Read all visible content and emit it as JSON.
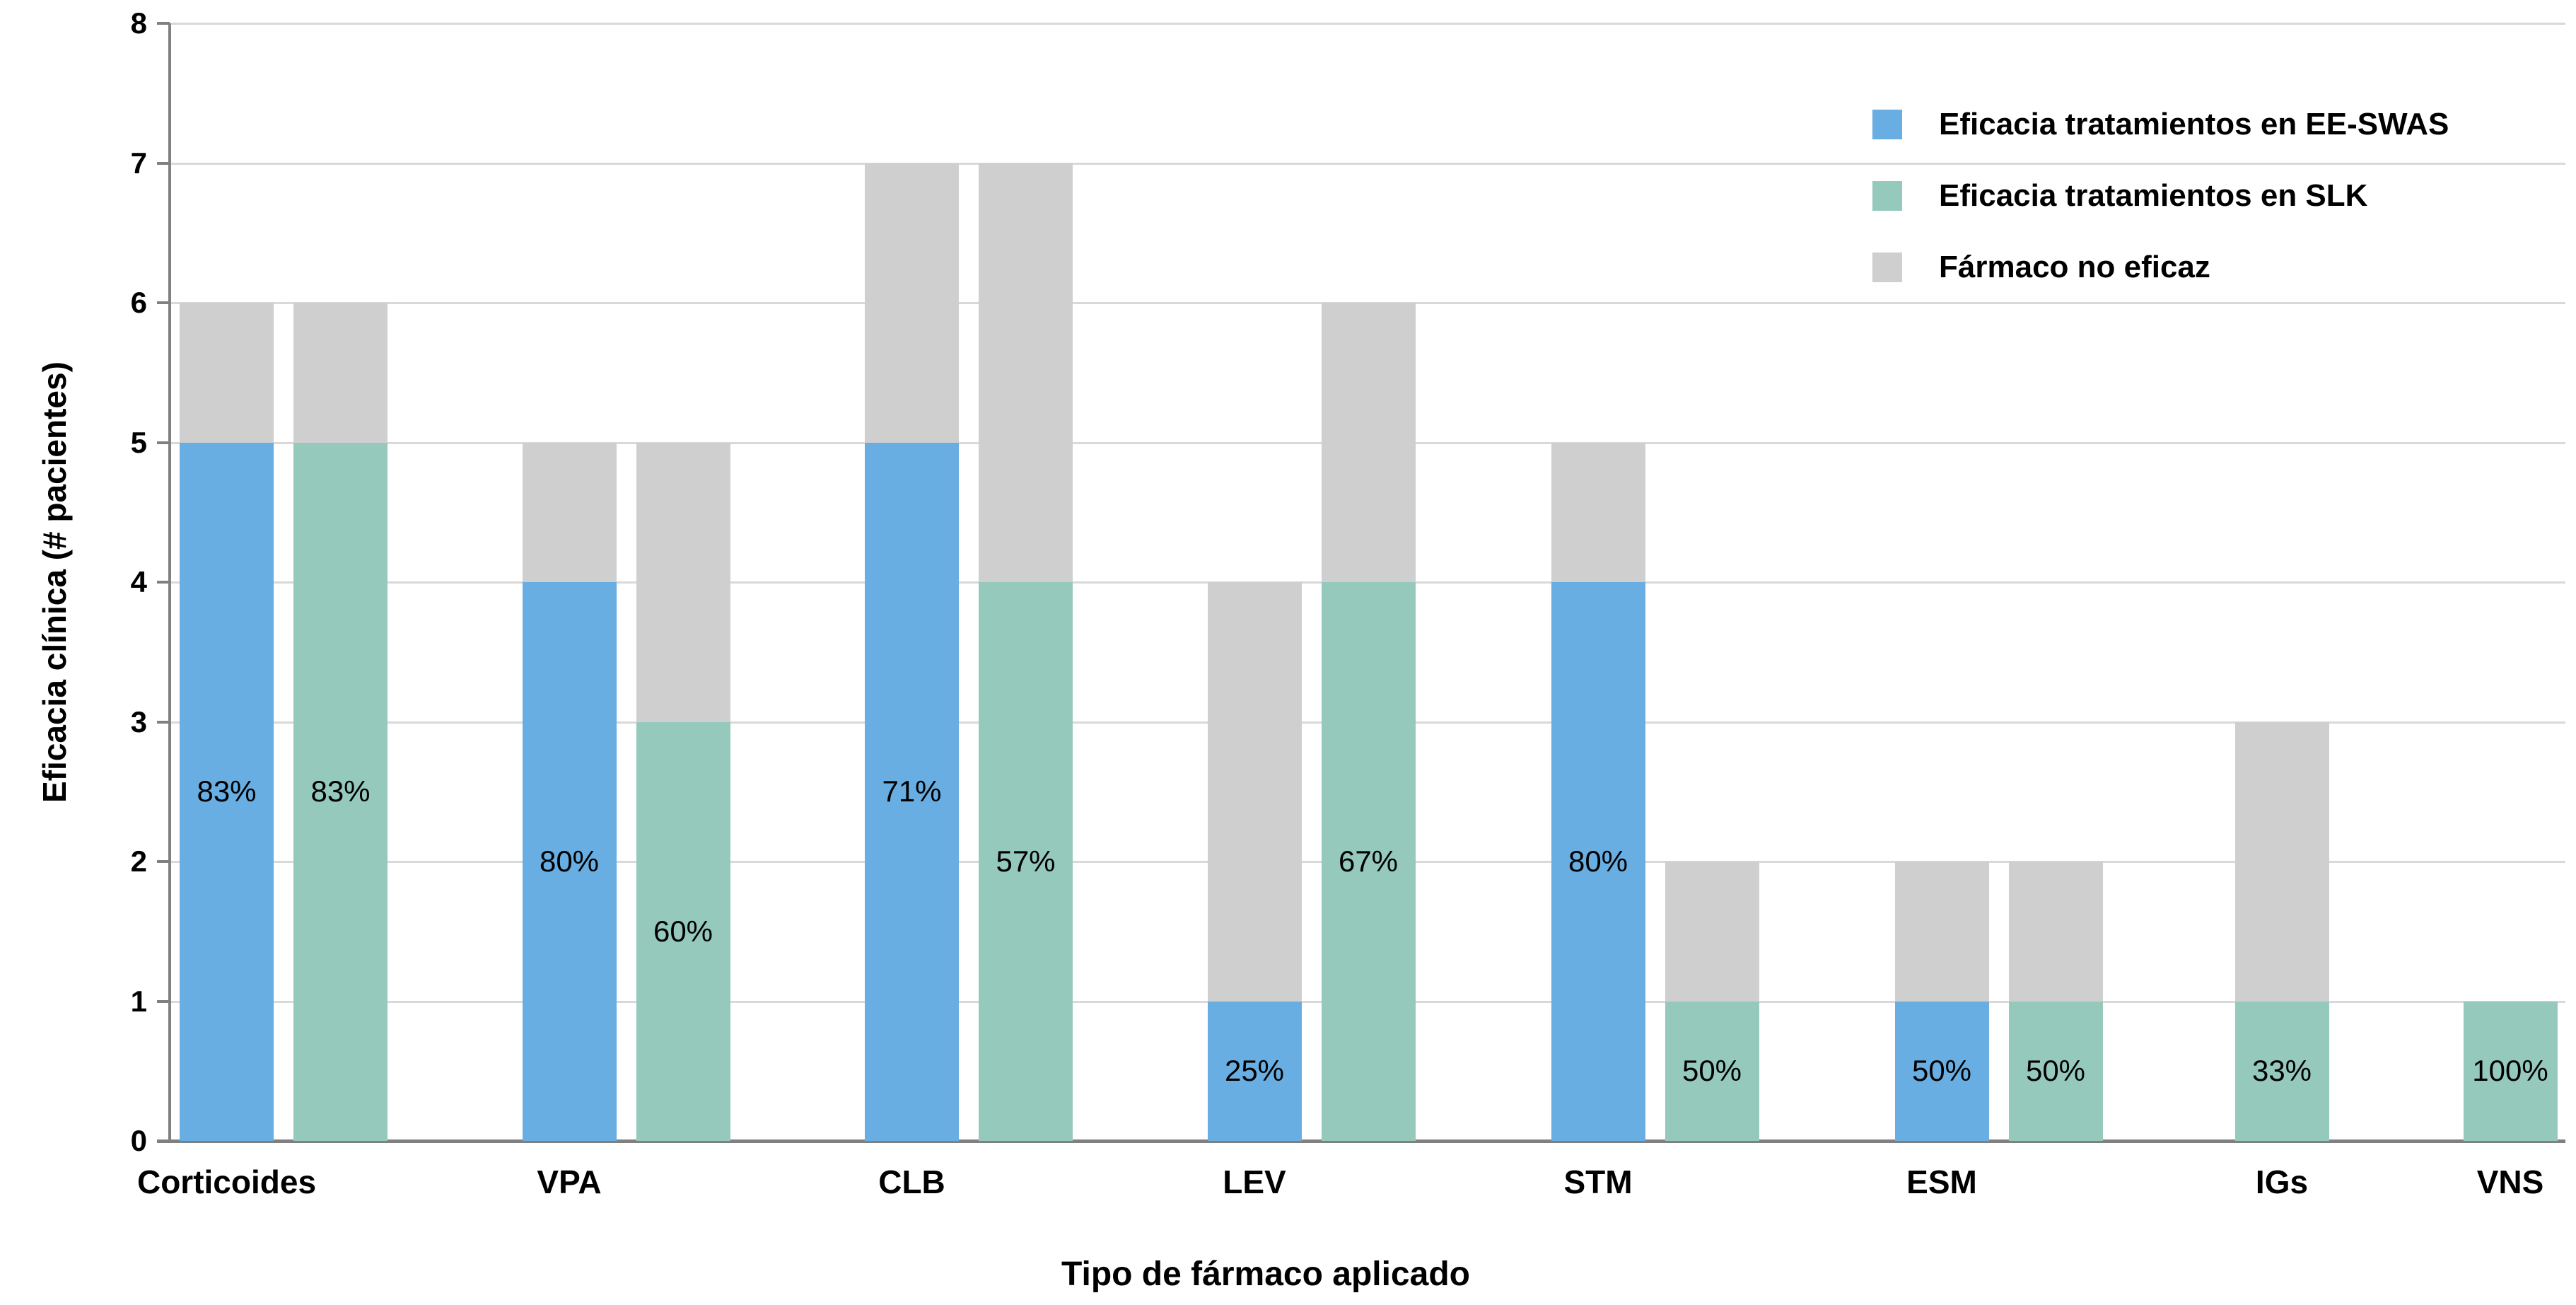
{
  "chart_data": {
    "type": "bar",
    "stacked": true,
    "title": "",
    "xlabel": "Tipo de fármaco aplicado",
    "ylabel": "Eficacia clínica (# pacientes)",
    "ylim": [
      0,
      8
    ],
    "ytick_labels": [
      "0",
      "1",
      "2",
      "3",
      "4",
      "5",
      "6",
      "7",
      "8"
    ],
    "grid": true,
    "legend_position": "top-right",
    "series_legend": [
      {
        "label": "Eficacia tratamientos en EE-SWAS",
        "color": "#68AEE2"
      },
      {
        "label": "Eficacia tratamientos en SLK",
        "color": "#95C9BC"
      },
      {
        "label": "Fármaco no eficaz",
        "color": "#D0CFCF"
      }
    ],
    "colors": {
      "EE-SWAS": "#68AEE2",
      "SLK": "#95C9BC",
      "no_eficaz": "#D0CFCF"
    },
    "categories": [
      "Corticoides",
      "VPA",
      "CLB",
      "LEV",
      "STM",
      "ESM",
      "IGs",
      "VNS"
    ],
    "bars": [
      {
        "category": "Corticoides",
        "series": "EE-SWAS",
        "efficacy": 5,
        "total": 6,
        "pct_label": "83%"
      },
      {
        "category": "Corticoides",
        "series": "SLK",
        "efficacy": 5,
        "total": 6,
        "pct_label": "83%"
      },
      {
        "category": "VPA",
        "series": "EE-SWAS",
        "efficacy": 4,
        "total": 5,
        "pct_label": "80%"
      },
      {
        "category": "VPA",
        "series": "SLK",
        "efficacy": 3,
        "total": 5,
        "pct_label": "60%"
      },
      {
        "category": "CLB",
        "series": "EE-SWAS",
        "efficacy": 5,
        "total": 7,
        "pct_label": "71%"
      },
      {
        "category": "CLB",
        "series": "SLK",
        "efficacy": 4,
        "total": 7,
        "pct_label": "57%"
      },
      {
        "category": "LEV",
        "series": "EE-SWAS",
        "efficacy": 1,
        "total": 4,
        "pct_label": "25%"
      },
      {
        "category": "LEV",
        "series": "SLK",
        "efficacy": 4,
        "total": 6,
        "pct_label": "67%"
      },
      {
        "category": "STM",
        "series": "EE-SWAS",
        "efficacy": 4,
        "total": 5,
        "pct_label": "80%"
      },
      {
        "category": "STM",
        "series": "SLK",
        "efficacy": 1,
        "total": 2,
        "pct_label": "50%"
      },
      {
        "category": "ESM",
        "series": "EE-SWAS",
        "efficacy": 1,
        "total": 2,
        "pct_label": "50%"
      },
      {
        "category": "ESM",
        "series": "SLK",
        "efficacy": 1,
        "total": 2,
        "pct_label": "50%"
      },
      {
        "category": "IGs",
        "series": "SLK",
        "efficacy": 1,
        "total": 3,
        "pct_label": "33%"
      },
      {
        "category": "VNS",
        "series": "SLK",
        "efficacy": 1,
        "total": 1,
        "pct_label": "100%"
      }
    ]
  }
}
